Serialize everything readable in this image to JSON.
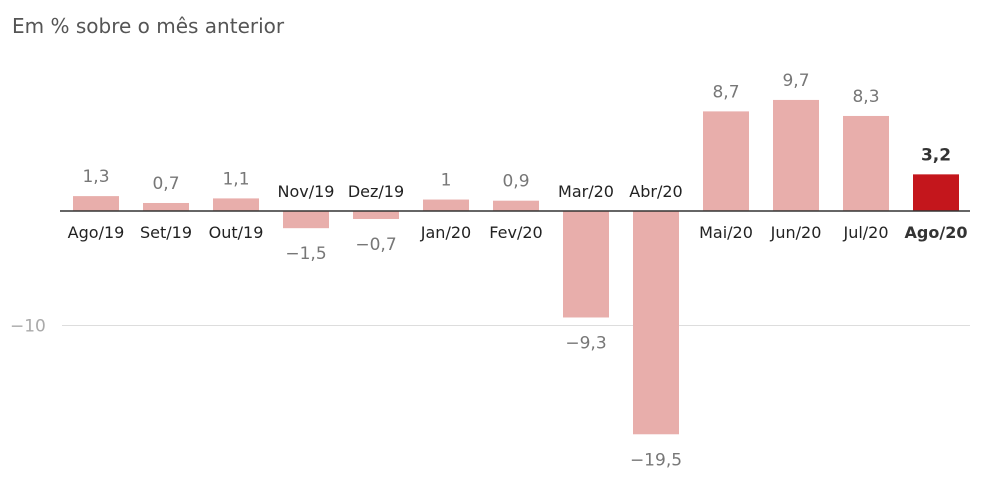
{
  "subtitle": "Em % sobre o mês anterior",
  "chart_data": {
    "type": "bar",
    "title": "",
    "subtitle": "Em % sobre o mês anterior",
    "xlabel": "",
    "ylabel": "",
    "categories": [
      "Ago/19",
      "Set/19",
      "Out/19",
      "Nov/19",
      "Dez/19",
      "Jan/20",
      "Fev/20",
      "Mar/20",
      "Abr/20",
      "Mai/20",
      "Jun/20",
      "Jul/20",
      "Ago/20"
    ],
    "values": [
      1.3,
      0.7,
      1.1,
      -1.5,
      -0.7,
      1,
      0.9,
      -9.3,
      -19.5,
      8.7,
      9.7,
      8.3,
      3.2
    ],
    "value_labels": [
      "1,3",
      "0,7",
      "1,1",
      "−1,5",
      "−0,7",
      "1",
      "0,9",
      "−9,3",
      "−19,5",
      "8,7",
      "9,7",
      "8,3",
      "3,2"
    ],
    "highlight_index": 12,
    "yticks": [
      {
        "value": -10,
        "label": "−10"
      }
    ],
    "ylim": [
      -20.5,
      12
    ],
    "grid": true,
    "colors": {
      "bar": "#e8aeab",
      "highlight": "#c4161c",
      "axis": "#333333",
      "grid": "#dddddd"
    }
  }
}
